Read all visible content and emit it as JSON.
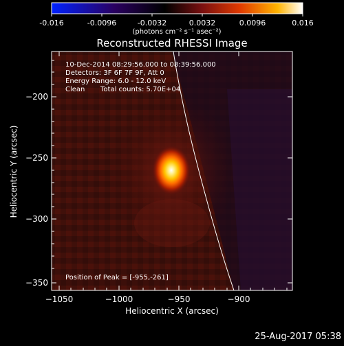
{
  "colorbar": {
    "tick_labels": [
      "-0.016",
      "-0.0096",
      "-0.0032",
      "0.0032",
      "0.0096",
      "0.016"
    ],
    "unit_label": "(photons cm⁻² s⁻¹ asec⁻²)"
  },
  "plot": {
    "title": "Reconstructed RHESSI Image",
    "x_label": "Heliocentric X (arcsec)",
    "y_label": "Heliocentric Y (arcsec)",
    "x_ticks": [
      "−1050",
      "−1000",
      "−950",
      "−900"
    ],
    "y_ticks": [
      "−200",
      "−250",
      "−300",
      "−350"
    ]
  },
  "annotations": {
    "time_range": "10-Dec-2014 08:29:56.000 to 08:39:56.000",
    "detectors": "Detectors: 3F 6F 7F 9F, Att 0",
    "energy_range": "Energy Range: 6.0 - 12.0 keV",
    "method": "Clean",
    "total_counts": "Total counts: 5.70E+04",
    "peak_position": "Position of Peak = [-955,-261]"
  },
  "footer": {
    "timestamp": "25-Aug-2017 05:38"
  },
  "image_values": {
    "peak_x_arcsec": -955,
    "peak_y_arcsec": -261,
    "x_range_arcsec": [
      -1055,
      -895
    ],
    "y_range_arcsec": [
      -175,
      -355
    ]
  },
  "colors": {
    "colormap": [
      "#0000ff",
      "#1a0033",
      "#000000",
      "#5a0c0c",
      "#c42000",
      "#ff6a00",
      "#ffd000",
      "#ffffff"
    ],
    "limb_line": "#ffffff"
  }
}
